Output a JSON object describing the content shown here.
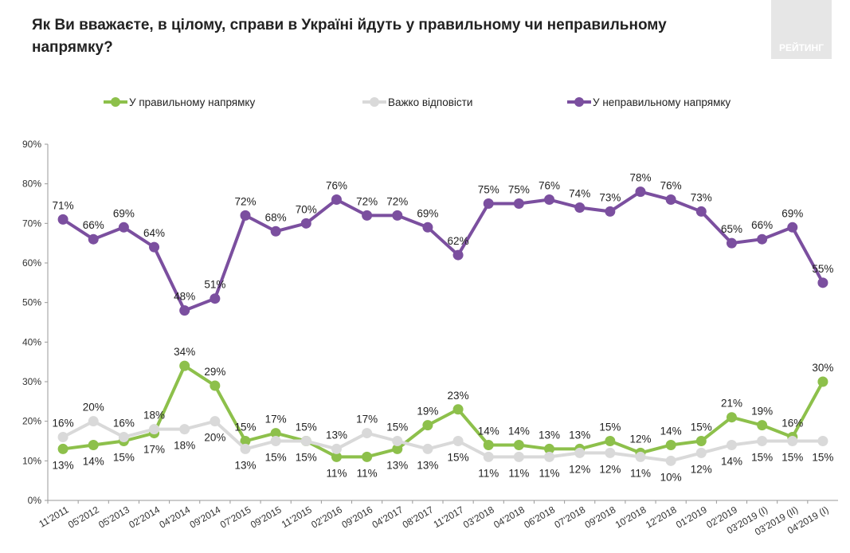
{
  "logo": "РЕЙТИНГ",
  "chart_data": {
    "type": "line",
    "title": "Як Ви вважаєте, в цілому, справи в Україні йдуть у правильному чи неправильному напрямку?",
    "categories": [
      "11'2011",
      "05'2012",
      "05'2013",
      "02'2014",
      "04'2014",
      "09'2014",
      "07'2015",
      "09'2015",
      "11'2015",
      "02'2016",
      "09'2016",
      "04'2017",
      "08'2017",
      "11'2017",
      "03'2018",
      "04'2018",
      "06'2018",
      "07'2018",
      "09'2018",
      "10'2018",
      "12'2018",
      "01'2019",
      "02'2019",
      "03'2019 (I)",
      "03'2019 (II)",
      "04'2019 (I)"
    ],
    "series": [
      {
        "name": "У правильному напрямку",
        "color": "#8dc04b",
        "values": [
          13,
          14,
          15,
          17,
          34,
          29,
          15,
          17,
          15,
          11,
          11,
          13,
          19,
          23,
          14,
          14,
          13,
          13,
          15,
          12,
          14,
          15,
          21,
          19,
          16,
          30
        ],
        "value_labels": [
          "13%",
          "14%",
          "15%",
          "17%",
          "34%",
          "29%",
          "15%",
          "17%",
          "15%",
          "11%",
          "11%",
          "13%",
          "19%",
          "23%",
          "14%",
          "14%",
          "13%",
          "13%",
          "15%",
          "12%",
          "14%",
          "15%",
          "21%",
          "19%",
          "16%",
          "30%"
        ]
      },
      {
        "name": "Важко відповісти",
        "color": "#d9d9d9",
        "values": [
          16,
          20,
          16,
          18,
          18,
          20,
          13,
          15,
          15,
          13,
          17,
          15,
          13,
          15,
          11,
          11,
          11,
          12,
          12,
          11,
          10,
          12,
          14,
          15,
          15,
          15
        ],
        "value_labels": [
          "16%",
          "20%",
          "16%",
          "18%",
          "18%",
          "20%",
          "13%",
          "15%",
          "15%",
          "13%",
          "17%",
          "15%",
          "13%",
          "15%",
          "11%",
          "11%",
          "11%",
          "12%",
          "12%",
          "11%",
          "10%",
          "12%",
          "14%",
          "15%",
          "15%",
          "15%"
        ]
      },
      {
        "name": "У неправильному напрямку",
        "color": "#7b4f9f",
        "values": [
          71,
          66,
          69,
          64,
          48,
          51,
          72,
          68,
          70,
          76,
          72,
          72,
          69,
          62,
          75,
          75,
          76,
          74,
          73,
          78,
          76,
          73,
          65,
          66,
          69,
          55
        ],
        "value_labels": [
          "71%",
          "66%",
          "69%",
          "64%",
          "48%",
          "51%",
          "72%",
          "68%",
          "70%",
          "76%",
          "72%",
          "72%",
          "69%",
          "62%",
          "75%",
          "75%",
          "76%",
          "74%",
          "73%",
          "78%",
          "76%",
          "73%",
          "65%",
          "66%",
          "69%",
          "55%"
        ]
      }
    ],
    "ylim": [
      0,
      90
    ],
    "yticks": [
      {
        "value": 0,
        "label": "0%"
      },
      {
        "value": 10,
        "label": "10%"
      },
      {
        "value": 20,
        "label": "20%"
      },
      {
        "value": 30,
        "label": "30%"
      },
      {
        "value": 40,
        "label": "40%"
      },
      {
        "value": 50,
        "label": "50%"
      },
      {
        "value": 60,
        "label": "60%"
      },
      {
        "value": 70,
        "label": "70%"
      },
      {
        "value": 80,
        "label": "80%"
      },
      {
        "value": 90,
        "label": "90%"
      }
    ],
    "legend": "top"
  }
}
